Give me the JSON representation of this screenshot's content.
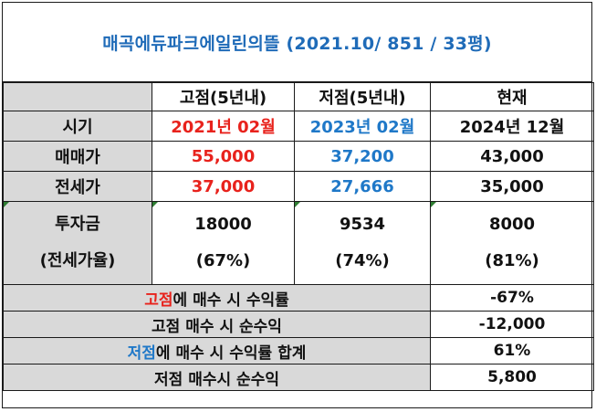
{
  "title": "매곡에듀파크에일린의뜰 (2021.10/ 851 / 33평)",
  "headers": {
    "blank": "",
    "high": "고점(5년내)",
    "low": "저점(5년내)",
    "now": "현재"
  },
  "rows": {
    "period": {
      "label": "시기",
      "high": "2021년 02월",
      "low": "2023년 02월",
      "now": "2024년 12월"
    },
    "price": {
      "label": "매매가",
      "high": "55,000",
      "low": "37,200",
      "now": "43,000"
    },
    "jeonse": {
      "label": "전세가",
      "high": "37,000",
      "low": "27,666",
      "now": "35,000"
    },
    "invest": {
      "label_line1": "투자금",
      "label_line2": "(전세가율)",
      "high_line1": "18000",
      "high_line2": "(67%)",
      "low_line1": "9534",
      "low_line2": "(74%)",
      "now_line1": "8000",
      "now_line2": "(81%)"
    }
  },
  "summary": [
    {
      "prefix": "고점",
      "prefix_color": "red",
      "rest": "에 매수 시 수익률",
      "value": "-67%"
    },
    {
      "prefix": "",
      "prefix_color": "",
      "rest": "고점 매수 시 순수익",
      "value": "-12,000"
    },
    {
      "prefix": "저점",
      "prefix_color": "blue",
      "rest": "에 매수 시 수익률 합계",
      "value": "61%"
    },
    {
      "prefix": "",
      "prefix_color": "",
      "rest": "저점 매수시 순수익",
      "value": "5,800"
    }
  ],
  "colors": {
    "title": "#1f6bb8",
    "high": "#e8221c",
    "low": "#1f78c8",
    "label_bg": "#d9d9d9",
    "cell_marker": "#2e7d32"
  }
}
